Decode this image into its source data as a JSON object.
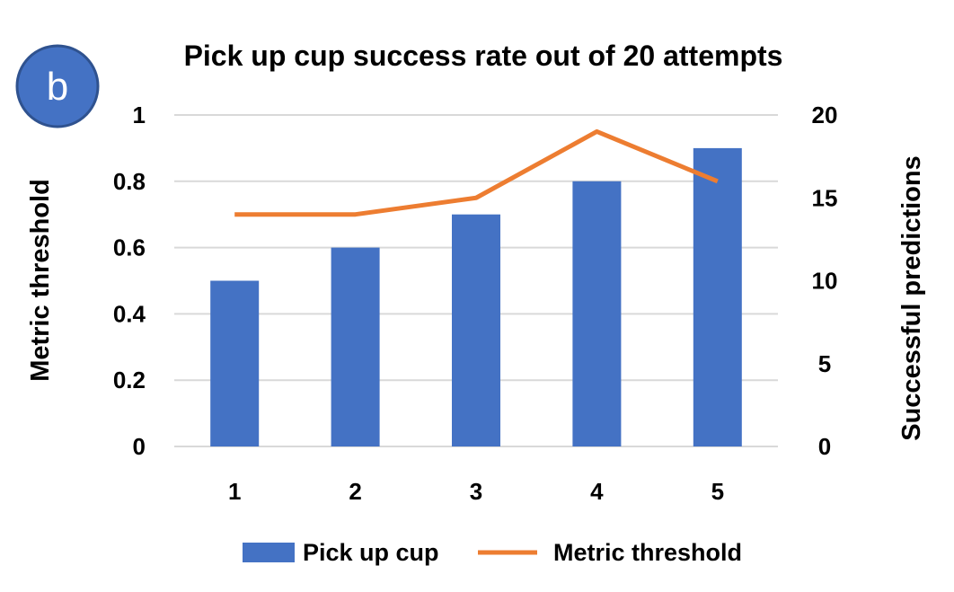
{
  "badge": {
    "label": "b",
    "color": "#4472C4"
  },
  "chart_data": {
    "type": "bar",
    "title": "Pick up cup success rate out of 20 attempts",
    "categories": [
      "1",
      "2",
      "3",
      "4",
      "5"
    ],
    "ylabel_left": "Metric threshold",
    "ylabel_right": "Successful predictions",
    "ylim_left": [
      0,
      1
    ],
    "ylim_right": [
      0,
      20
    ],
    "yticks_left": [
      "0",
      "0.2",
      "0.4",
      "0.6",
      "0.8",
      "1"
    ],
    "yticks_right": [
      "0",
      "5",
      "10",
      "15",
      "20"
    ],
    "grid": true,
    "legend_position": "bottom",
    "series": [
      {
        "name": "Pick up cup",
        "type": "bar",
        "axis": "left",
        "color": "#4472C4",
        "values": [
          0.5,
          0.6,
          0.7,
          0.8,
          0.9
        ]
      },
      {
        "name": "Metric threshold",
        "type": "line",
        "axis": "right",
        "color": "#ED7D31",
        "values": [
          14,
          14,
          15,
          19,
          16
        ]
      }
    ]
  }
}
